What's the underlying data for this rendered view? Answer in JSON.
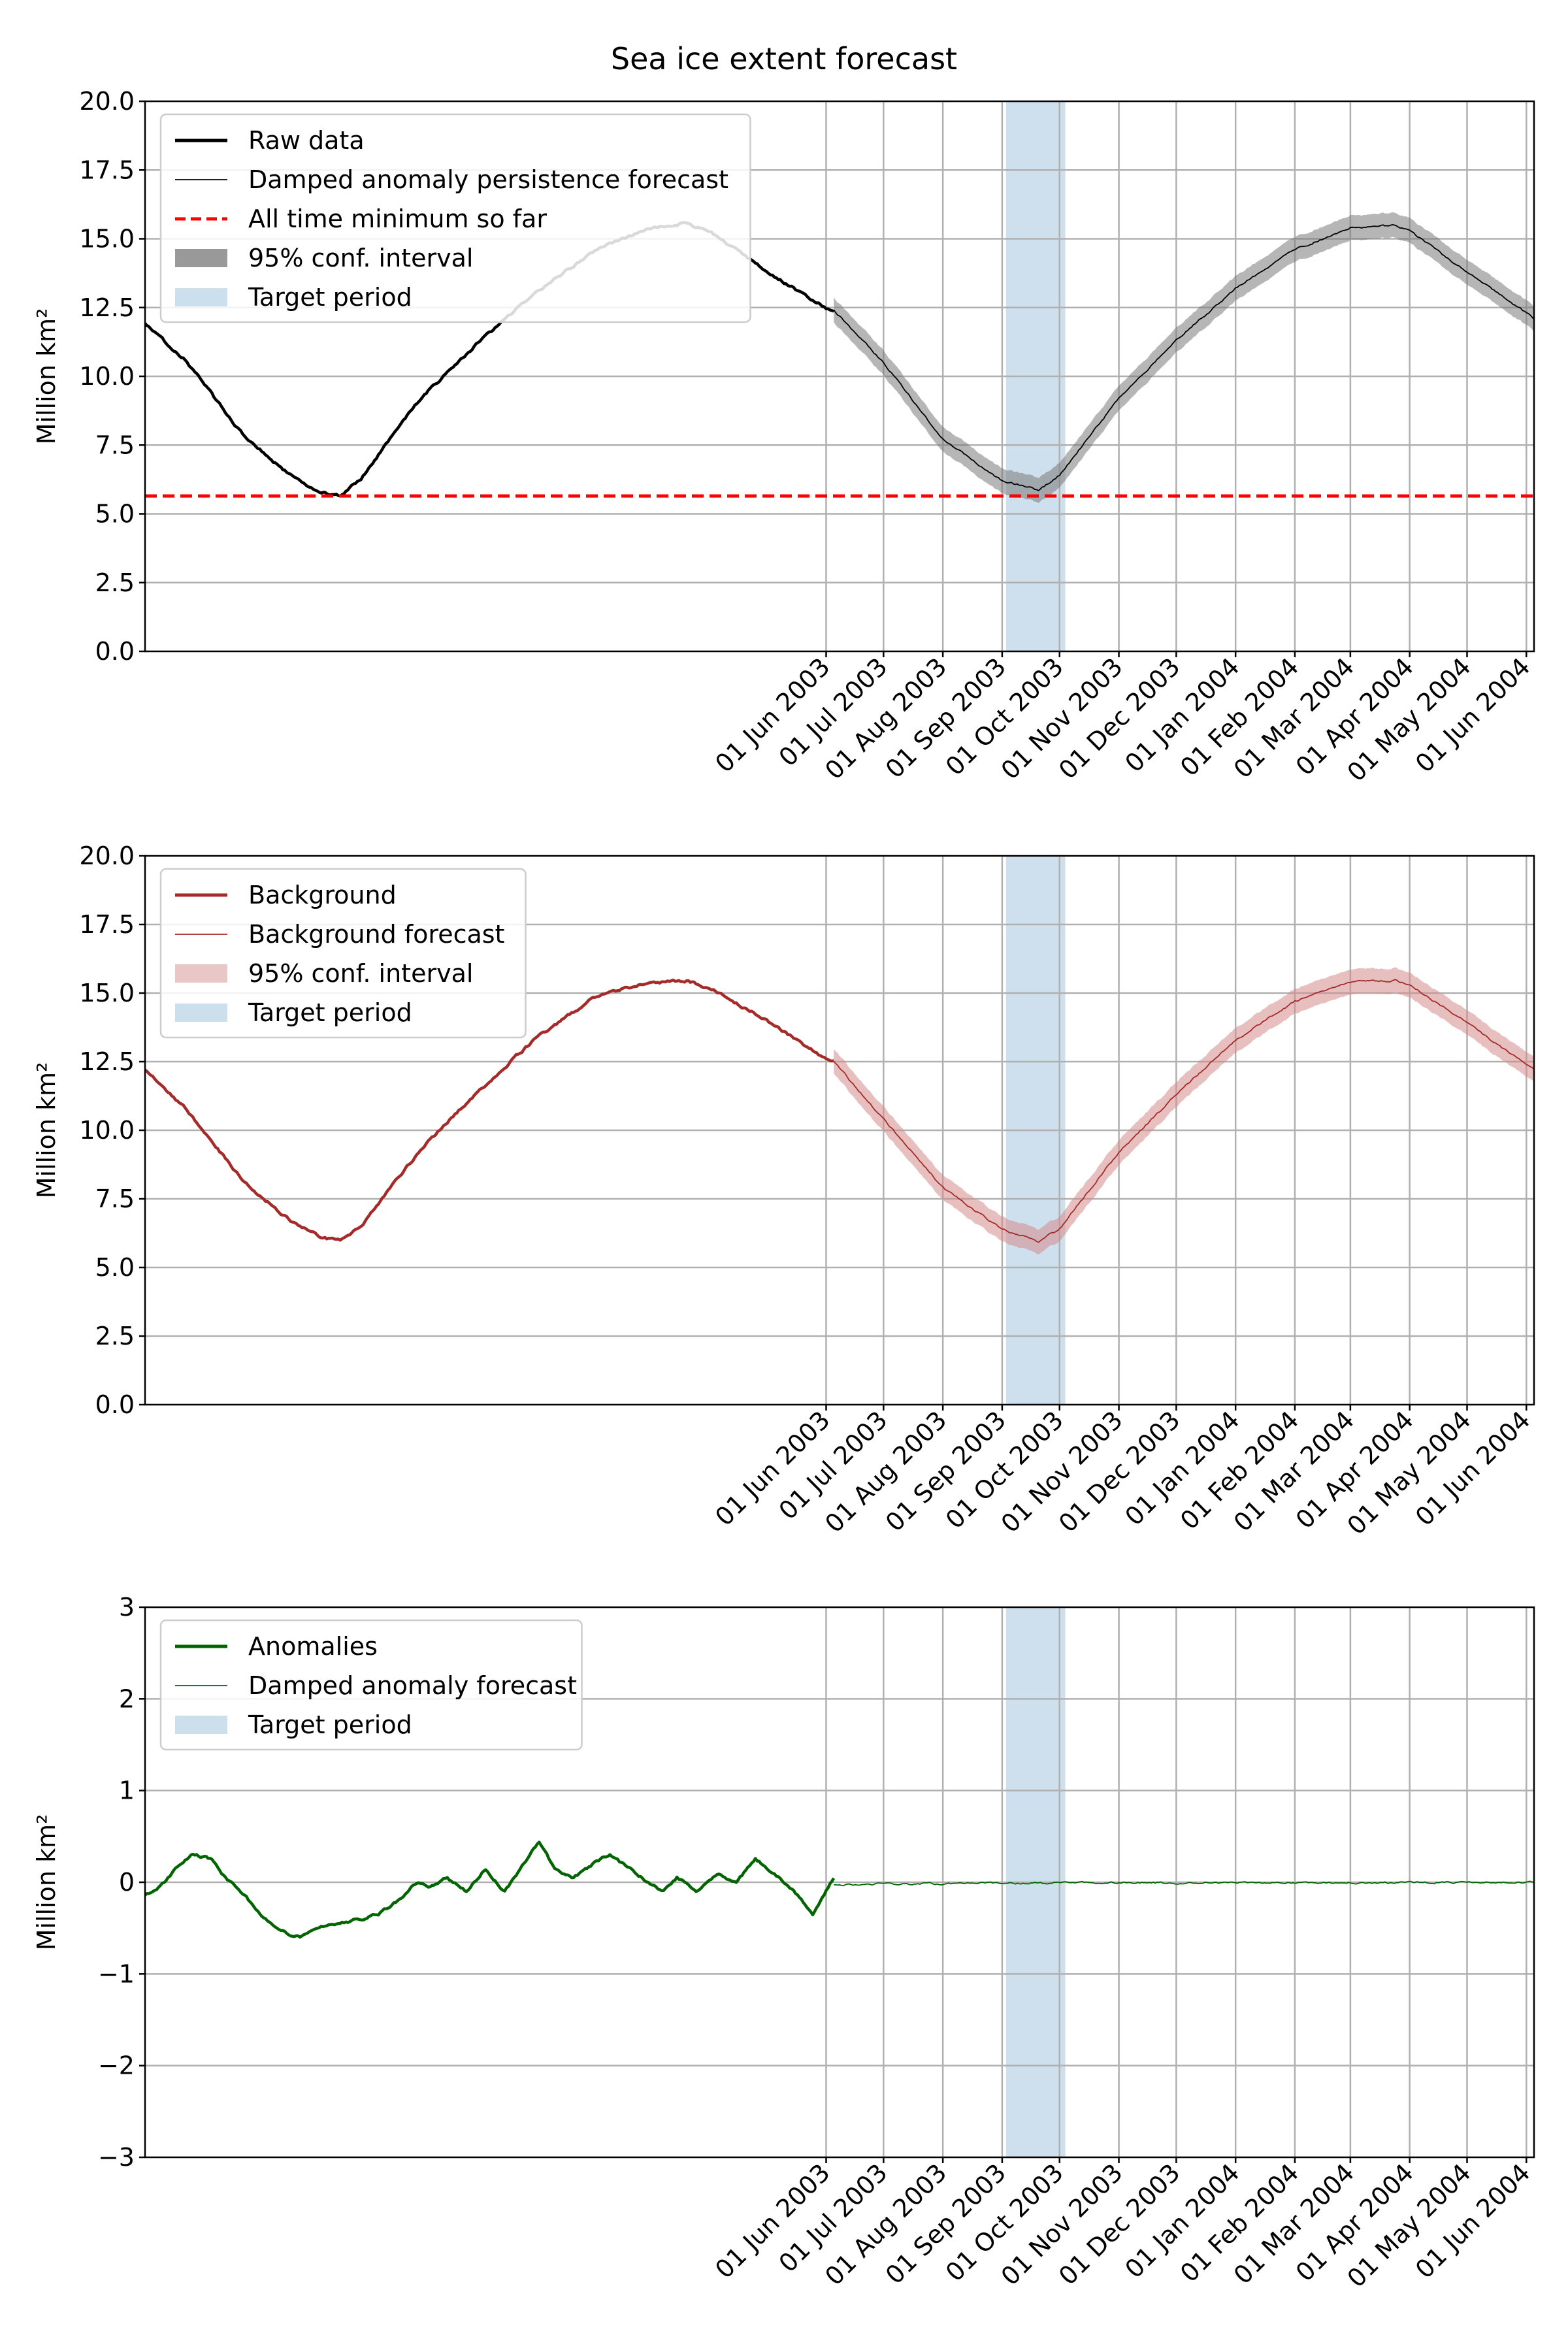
{
  "figure": {
    "title": "Sea ice extent forecast"
  },
  "chart_data": [
    {
      "type": "line",
      "ylabel": "Million km²",
      "ylim": [
        0,
        20
      ],
      "yticks": [
        "0.0",
        "2.5",
        "5.0",
        "7.5",
        "10.0",
        "12.5",
        "15.0",
        "17.5",
        "20.0"
      ],
      "xlim": [
        "2002-06-10",
        "2004-06-05"
      ],
      "xticks": [
        {
          "date": "2003-06-01",
          "label": "01 Jun 2003"
        },
        {
          "date": "2003-07-01",
          "label": "01 Jul 2003"
        },
        {
          "date": "2003-08-01",
          "label": "01 Aug 2003"
        },
        {
          "date": "2003-09-01",
          "label": "01 Sep 2003"
        },
        {
          "date": "2003-10-01",
          "label": "01 Oct 2003"
        },
        {
          "date": "2003-11-01",
          "label": "01 Nov 2003"
        },
        {
          "date": "2003-12-01",
          "label": "01 Dec 2003"
        },
        {
          "date": "2004-01-01",
          "label": "01 Jan 2004"
        },
        {
          "date": "2004-02-01",
          "label": "01 Feb 2004"
        },
        {
          "date": "2004-03-01",
          "label": "01 Mar 2004"
        },
        {
          "date": "2004-04-01",
          "label": "01 Apr 2004"
        },
        {
          "date": "2004-05-01",
          "label": "01 May 2004"
        },
        {
          "date": "2004-06-01",
          "label": "01 Jun 2004"
        }
      ],
      "grid": true,
      "legend_position": "upper-left",
      "target_period": [
        "2003-09-03",
        "2003-10-04"
      ],
      "legend": [
        {
          "label": "Raw data",
          "style": "line",
          "color": "#000000"
        },
        {
          "label": "Damped anomaly persistence forecast",
          "style": "thin-line",
          "color": "#000000"
        },
        {
          "label": "All time minimum so far",
          "style": "dashed",
          "color": "#ff0000"
        },
        {
          "label": "95% conf. interval",
          "style": "patch",
          "color": "#808080"
        },
        {
          "label": "Target period",
          "style": "patch",
          "color": "#c6dbeb"
        }
      ],
      "series": [
        {
          "name": "Raw data",
          "role": "observed",
          "color": "#000000",
          "x": [
            "2002-06-10",
            "2002-07-01",
            "2002-08-01",
            "2002-08-25",
            "2002-09-10",
            "2002-09-20",
            "2002-10-01",
            "2002-11-01",
            "2002-12-01",
            "2003-01-01",
            "2003-02-01",
            "2003-03-01",
            "2003-03-20",
            "2003-04-01",
            "2003-05-01",
            "2003-06-01",
            "2003-06-05"
          ],
          "y": [
            11.9,
            10.6,
            7.8,
            6.4,
            5.8,
            5.65,
            6.3,
            9.2,
            11.2,
            13.1,
            14.6,
            15.4,
            15.55,
            15.3,
            13.8,
            12.5,
            12.4
          ]
        },
        {
          "name": "Damped anomaly persistence forecast",
          "role": "forecast",
          "color": "#000000",
          "x": [
            "2003-06-05",
            "2003-07-01",
            "2003-08-01",
            "2003-09-01",
            "2003-09-20",
            "2003-10-01",
            "2003-11-01",
            "2003-12-01",
            "2004-01-01",
            "2004-02-01",
            "2004-03-01",
            "2004-03-25",
            "2004-04-01",
            "2004-05-01",
            "2004-06-05"
          ],
          "y": [
            12.4,
            10.5,
            7.7,
            6.2,
            5.85,
            6.4,
            9.2,
            11.3,
            13.2,
            14.6,
            15.4,
            15.5,
            15.3,
            13.8,
            12.1
          ],
          "ci_halfwidth": 0.45
        },
        {
          "name": "All time minimum so far",
          "role": "hline",
          "color": "#ff0000",
          "value": 5.65
        }
      ]
    },
    {
      "type": "line",
      "ylabel": "Million km²",
      "ylim": [
        0,
        20
      ],
      "yticks": [
        "0.0",
        "2.5",
        "5.0",
        "7.5",
        "10.0",
        "12.5",
        "15.0",
        "17.5",
        "20.0"
      ],
      "xlim": [
        "2002-06-10",
        "2004-06-05"
      ],
      "xticks": [
        {
          "date": "2003-06-01",
          "label": "01 Jun 2003"
        },
        {
          "date": "2003-07-01",
          "label": "01 Jul 2003"
        },
        {
          "date": "2003-08-01",
          "label": "01 Aug 2003"
        },
        {
          "date": "2003-09-01",
          "label": "01 Sep 2003"
        },
        {
          "date": "2003-10-01",
          "label": "01 Oct 2003"
        },
        {
          "date": "2003-11-01",
          "label": "01 Nov 2003"
        },
        {
          "date": "2003-12-01",
          "label": "01 Dec 2003"
        },
        {
          "date": "2004-01-01",
          "label": "01 Jan 2004"
        },
        {
          "date": "2004-02-01",
          "label": "01 Feb 2004"
        },
        {
          "date": "2004-03-01",
          "label": "01 Mar 2004"
        },
        {
          "date": "2004-04-01",
          "label": "01 Apr 2004"
        },
        {
          "date": "2004-05-01",
          "label": "01 May 2004"
        },
        {
          "date": "2004-06-01",
          "label": "01 Jun 2004"
        }
      ],
      "grid": true,
      "legend_position": "upper-left",
      "target_period": [
        "2003-09-03",
        "2003-10-04"
      ],
      "legend": [
        {
          "label": "Background",
          "style": "line",
          "color": "#a52a2a"
        },
        {
          "label": "Background forecast",
          "style": "thin-line",
          "color": "#a52a2a"
        },
        {
          "label": "95% conf. interval",
          "style": "patch",
          "color": "#e3b9b9"
        },
        {
          "label": "Target period",
          "style": "patch",
          "color": "#c6dbeb"
        }
      ],
      "series": [
        {
          "name": "Background",
          "role": "observed",
          "color": "#a52a2a",
          "x": [
            "2002-06-10",
            "2002-07-01",
            "2002-08-01",
            "2002-08-25",
            "2002-09-10",
            "2002-09-20",
            "2002-10-01",
            "2002-11-01",
            "2002-12-01",
            "2003-01-01",
            "2003-02-01",
            "2003-03-01",
            "2003-03-20",
            "2003-04-01",
            "2003-05-01",
            "2003-06-01",
            "2003-06-05"
          ],
          "y": [
            12.2,
            10.8,
            8.1,
            6.7,
            6.1,
            6.0,
            6.5,
            9.3,
            11.4,
            13.4,
            14.9,
            15.4,
            15.45,
            15.2,
            14.0,
            12.6,
            12.5
          ]
        },
        {
          "name": "Background forecast",
          "role": "forecast",
          "color": "#a52a2a",
          "x": [
            "2003-06-05",
            "2003-07-01",
            "2003-08-01",
            "2003-09-01",
            "2003-09-20",
            "2003-10-01",
            "2003-11-01",
            "2003-12-01",
            "2004-01-01",
            "2004-02-01",
            "2004-03-01",
            "2004-03-25",
            "2004-04-01",
            "2004-05-01",
            "2004-06-05"
          ],
          "y": [
            12.5,
            10.4,
            7.9,
            6.4,
            5.95,
            6.4,
            9.2,
            11.3,
            13.3,
            14.7,
            15.4,
            15.45,
            15.3,
            13.9,
            12.2
          ],
          "ci_halfwidth": 0.45
        }
      ]
    },
    {
      "type": "line",
      "ylabel": "Million km²",
      "ylim": [
        -3,
        3
      ],
      "yticks": [
        "−3",
        "−2",
        "−1",
        "0",
        "1",
        "2",
        "3"
      ],
      "xlim": [
        "2002-06-10",
        "2004-06-05"
      ],
      "xticks": [
        {
          "date": "2003-06-01",
          "label": "01 Jun 2003"
        },
        {
          "date": "2003-07-01",
          "label": "01 Jul 2003"
        },
        {
          "date": "2003-08-01",
          "label": "01 Aug 2003"
        },
        {
          "date": "2003-09-01",
          "label": "01 Sep 2003"
        },
        {
          "date": "2003-10-01",
          "label": "01 Oct 2003"
        },
        {
          "date": "2003-11-01",
          "label": "01 Nov 2003"
        },
        {
          "date": "2003-12-01",
          "label": "01 Dec 2003"
        },
        {
          "date": "2004-01-01",
          "label": "01 Jan 2004"
        },
        {
          "date": "2004-02-01",
          "label": "01 Feb 2004"
        },
        {
          "date": "2004-03-01",
          "label": "01 Mar 2004"
        },
        {
          "date": "2004-04-01",
          "label": "01 Apr 2004"
        },
        {
          "date": "2004-05-01",
          "label": "01 May 2004"
        },
        {
          "date": "2004-06-01",
          "label": "01 Jun 2004"
        }
      ],
      "grid": true,
      "legend_position": "upper-left",
      "target_period": [
        "2003-09-03",
        "2003-10-04"
      ],
      "legend": [
        {
          "label": "Anomalies",
          "style": "line",
          "color": "#006400"
        },
        {
          "label": "Damped anomaly forecast",
          "style": "thin-line",
          "color": "#006400"
        },
        {
          "label": "Target period",
          "style": "patch",
          "color": "#c6dbeb"
        }
      ],
      "series": [
        {
          "name": "Anomalies",
          "role": "observed",
          "color": "#006400",
          "x": [
            "2002-06-10",
            "2002-06-18",
            "2002-06-28",
            "2002-07-05",
            "2002-07-15",
            "2002-07-22",
            "2002-08-01",
            "2002-08-12",
            "2002-08-22",
            "2002-08-30",
            "2002-09-10",
            "2002-09-20",
            "2002-10-01",
            "2002-10-10",
            "2002-10-20",
            "2002-10-30",
            "2002-11-05",
            "2002-11-15",
            "2002-11-25",
            "2002-12-05",
            "2002-12-15",
            "2002-12-25",
            "2003-01-02",
            "2003-01-10",
            "2003-01-20",
            "2003-01-30",
            "2003-02-08",
            "2003-02-18",
            "2003-02-28",
            "2003-03-08",
            "2003-03-15",
            "2003-03-25",
            "2003-04-05",
            "2003-04-15",
            "2003-04-25",
            "2003-05-05",
            "2003-05-15",
            "2003-05-25",
            "2003-06-01",
            "2003-06-05"
          ],
          "y": [
            -0.15,
            -0.05,
            0.2,
            0.3,
            0.25,
            0.05,
            -0.15,
            -0.4,
            -0.55,
            -0.6,
            -0.5,
            -0.45,
            -0.4,
            -0.35,
            -0.2,
            0.0,
            -0.05,
            0.05,
            -0.1,
            0.15,
            -0.1,
            0.2,
            0.45,
            0.15,
            0.05,
            0.2,
            0.3,
            0.15,
            0.0,
            -0.1,
            0.05,
            -0.1,
            0.1,
            0.0,
            0.25,
            0.1,
            -0.1,
            -0.35,
            -0.1,
            0.05
          ]
        },
        {
          "name": "Damped anomaly forecast",
          "role": "forecast",
          "color": "#006400",
          "x": [
            "2003-06-05",
            "2003-07-01",
            "2003-09-01",
            "2003-12-01",
            "2004-06-05"
          ],
          "y": [
            -0.03,
            -0.02,
            -0.01,
            -0.005,
            0.0
          ]
        }
      ]
    }
  ]
}
